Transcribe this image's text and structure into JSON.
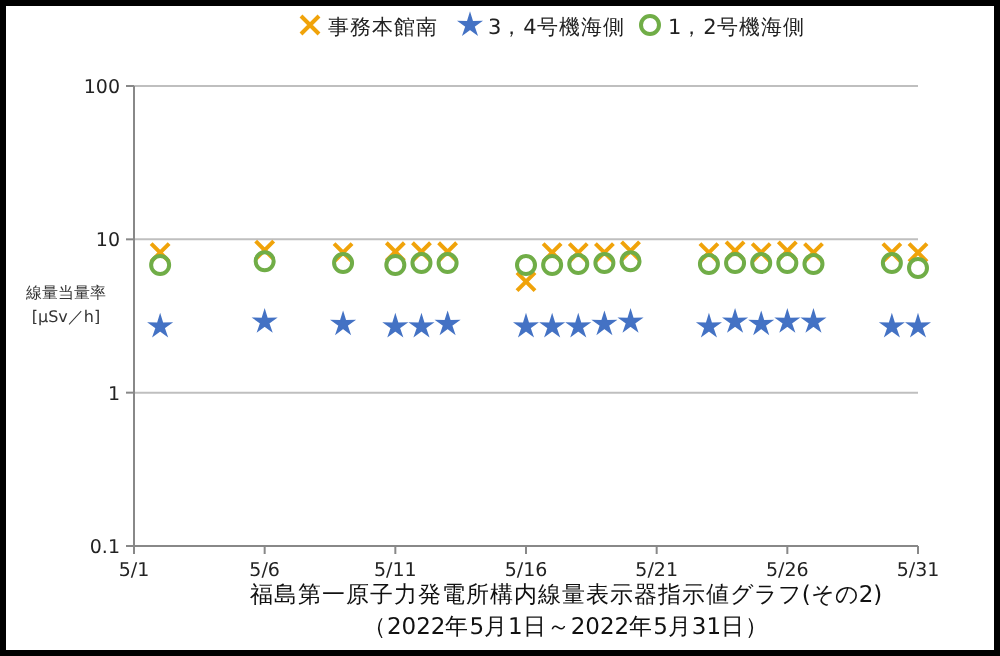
{
  "chart_data": {
    "type": "scatter",
    "title": "福島第一原子力発電所構内線量表示器指示値グラフ(その2)",
    "subtitle": "（2022年5月1日～2022年5月31日）",
    "ylabel": "線量当量率\n[μSv／h]",
    "x": [
      "2022-05-02",
      "2022-05-06",
      "2022-05-09",
      "2022-05-11",
      "2022-05-12",
      "2022-05-13",
      "2022-05-16",
      "2022-05-17",
      "2022-05-18",
      "2022-05-19",
      "2022-05-20",
      "2022-05-23",
      "2022-05-24",
      "2022-05-25",
      "2022-05-26",
      "2022-05-27",
      "2022-05-30",
      "2022-05-31"
    ],
    "series": [
      {
        "name": "事務本館南",
        "color": "#f0a30a",
        "marker": "cross",
        "values": [
          8.2,
          8.5,
          8.2,
          8.3,
          8.3,
          8.3,
          5.3,
          8.2,
          8.2,
          8.2,
          8.4,
          8.2,
          8.4,
          8.2,
          8.4,
          8.2,
          8.2,
          8.2
        ]
      },
      {
        "name": "3，4号機海側",
        "color": "#4472c4",
        "marker": "star",
        "values": [
          2.7,
          2.9,
          2.8,
          2.7,
          2.7,
          2.8,
          2.7,
          2.7,
          2.7,
          2.8,
          2.9,
          2.7,
          2.9,
          2.8,
          2.9,
          2.9,
          2.7,
          2.7
        ]
      },
      {
        "name": "1，2号機海側",
        "color": "#70ad47",
        "marker": "circle",
        "values": [
          6.8,
          7.2,
          7.0,
          6.8,
          7.0,
          7.0,
          6.8,
          6.8,
          6.9,
          7.0,
          7.2,
          6.9,
          7.0,
          7.0,
          7.0,
          6.9,
          7.0,
          6.5
        ]
      }
    ],
    "xlim": [
      "2022-05-01",
      "2022-05-31"
    ],
    "xticks": [
      {
        "value": "2022-05-01",
        "label": "5/1"
      },
      {
        "value": "2022-05-06",
        "label": "5/6"
      },
      {
        "value": "2022-05-11",
        "label": "5/11"
      },
      {
        "value": "2022-05-16",
        "label": "5/16"
      },
      {
        "value": "2022-05-21",
        "label": "5/21"
      },
      {
        "value": "2022-05-26",
        "label": "5/26"
      },
      {
        "value": "2022-05-31",
        "label": "5/31"
      }
    ],
    "ylim": [
      0.1,
      100
    ],
    "yticks": [
      0.1,
      1,
      10,
      100
    ],
    "log": "y",
    "grid": "y",
    "legend": "top"
  }
}
